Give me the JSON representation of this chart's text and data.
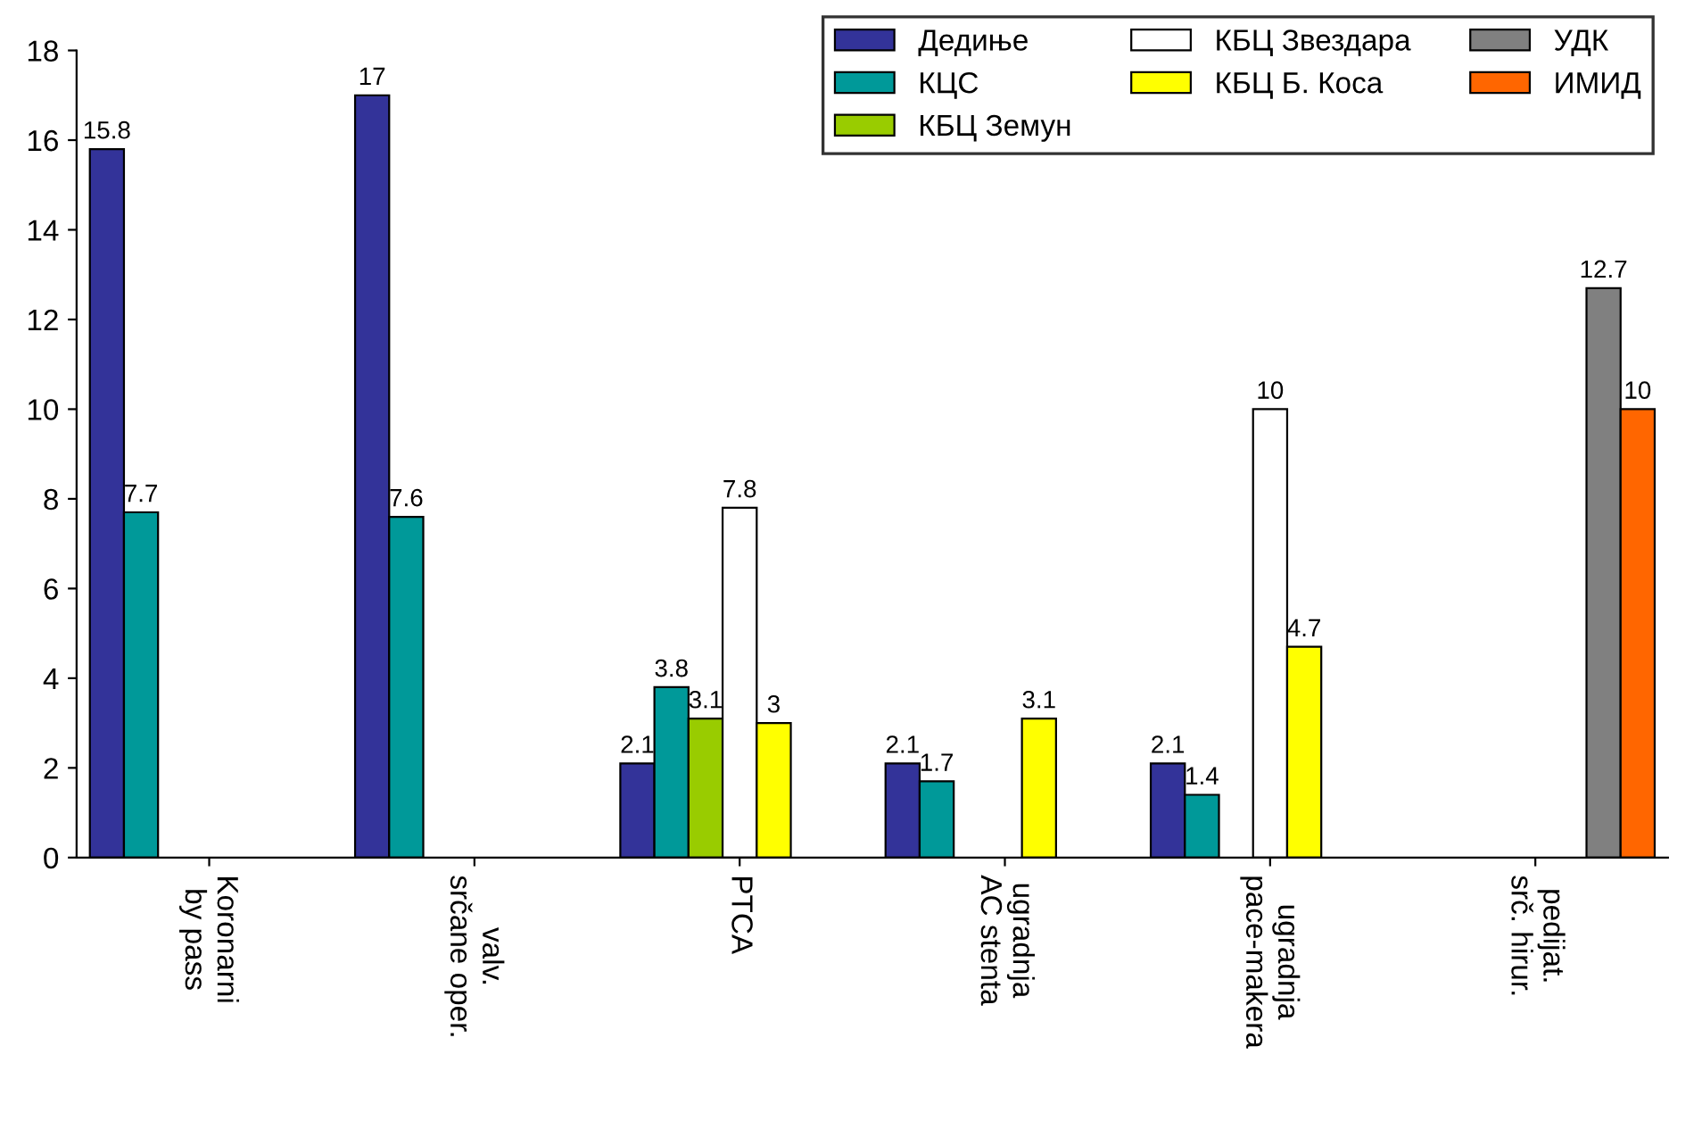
{
  "chart_data": {
    "type": "bar",
    "categories": [
      "Koronarni by pass",
      "valv. srčane oper.",
      "PTCA",
      "ugradnja AC stenta",
      "ugradnja pace-makera",
      "pedijat. srč. hirur."
    ],
    "series": [
      {
        "name": "Дедиње",
        "color": "#333399",
        "values": [
          15.8,
          17,
          2.1,
          2.1,
          2.1,
          null
        ]
      },
      {
        "name": "КЦС",
        "color": "#009999",
        "values": [
          7.7,
          7.6,
          3.8,
          1.7,
          1.4,
          null
        ]
      },
      {
        "name": "КБЦ Земун",
        "color": "#99cc00",
        "values": [
          null,
          null,
          3.1,
          null,
          null,
          null
        ]
      },
      {
        "name": "КБЦ Звездара",
        "color": "#ffffff",
        "values": [
          null,
          null,
          7.8,
          null,
          10,
          null
        ]
      },
      {
        "name": "КБЦ Б. Коса",
        "color": "#ffff00",
        "values": [
          null,
          null,
          3,
          3.1,
          4.7,
          null
        ]
      },
      {
        "name": "УДК",
        "color": "#808080",
        "values": [
          null,
          null,
          null,
          null,
          null,
          12.7
        ]
      },
      {
        "name": "ИМИД",
        "color": "#ff6600",
        "values": [
          null,
          null,
          null,
          null,
          null,
          10
        ]
      }
    ],
    "ylim": [
      0,
      18
    ],
    "yticks": [
      0,
      2,
      4,
      6,
      8,
      10,
      12,
      14,
      16,
      18
    ],
    "data_labels": true,
    "legend": "top right",
    "grid": false
  }
}
